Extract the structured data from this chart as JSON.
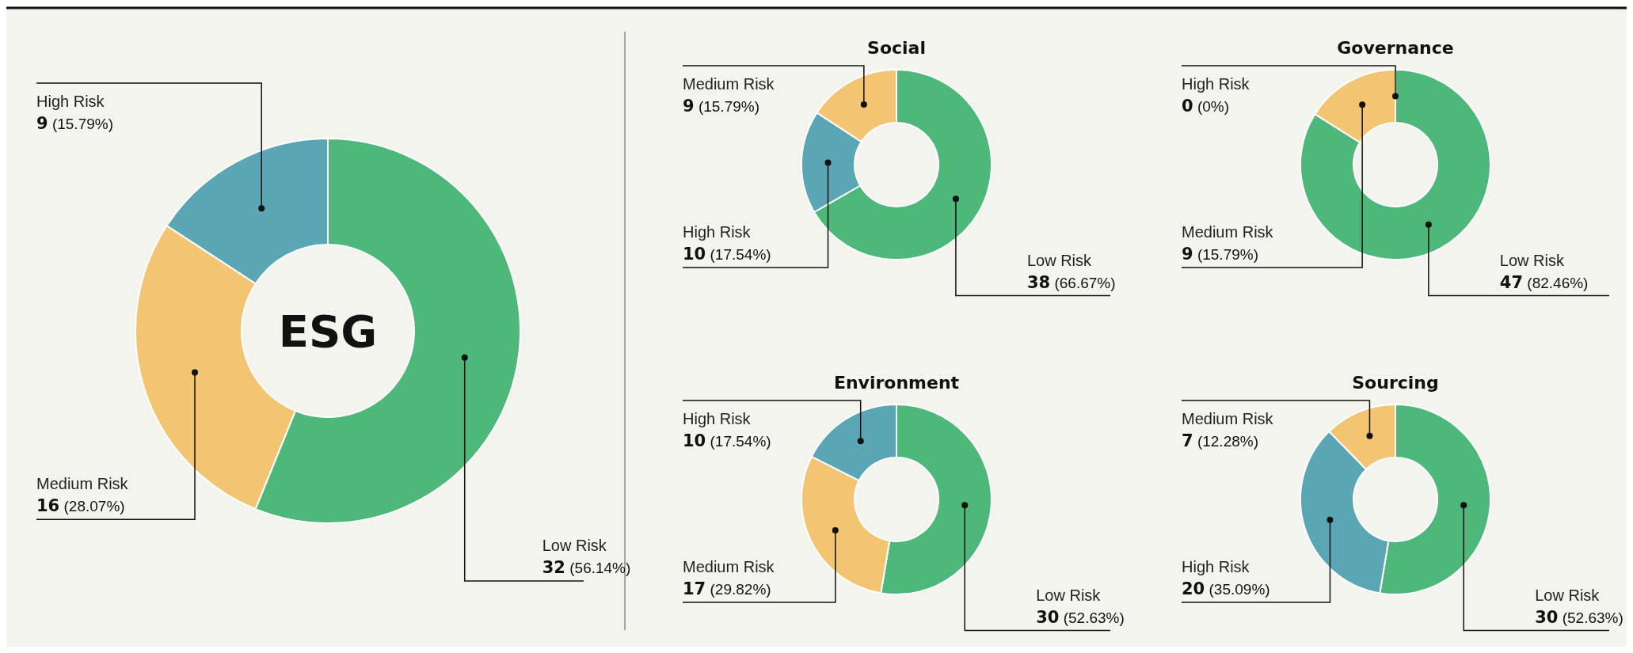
{
  "chart_data": [
    {
      "type": "donut",
      "title": "ESG",
      "categories": [
        "Low Risk",
        "Medium Risk",
        "High Risk"
      ],
      "values": [
        32,
        16,
        9
      ],
      "colors": [
        "#4db879",
        "#f3c472",
        "#5aa6b4"
      ],
      "value_labels": [
        "32 (56.14%)",
        "16 (28.07%)",
        "9 (15.79%)"
      ]
    },
    {
      "type": "donut",
      "title": "Social",
      "categories": [
        "Low Risk",
        "High Risk",
        "Medium Risk"
      ],
      "values": [
        38,
        10,
        9
      ],
      "colors": [
        "#4db879",
        "#5aa6b4",
        "#f3c472"
      ],
      "value_labels": [
        "38 (66.67%)",
        "10 (17.54%)",
        "9 (15.79%)"
      ]
    },
    {
      "type": "donut",
      "title": "Governance",
      "categories": [
        "Low Risk",
        "Medium Risk",
        "High Risk"
      ],
      "values": [
        47,
        9,
        0
      ],
      "colors": [
        "#4db879",
        "#f3c472",
        "#5aa6b4"
      ],
      "value_labels": [
        "47 (82.46%)",
        "9 (15.79%)",
        "0 (0%)"
      ]
    },
    {
      "type": "donut",
      "title": "Environment",
      "categories": [
        "Low Risk",
        "Medium Risk",
        "High Risk"
      ],
      "values": [
        30,
        17,
        10
      ],
      "colors": [
        "#4db879",
        "#f3c472",
        "#5aa6b4"
      ],
      "value_labels": [
        "30 (52.63%)",
        "17 (29.82%)",
        "10 (17.54%)"
      ]
    },
    {
      "type": "donut",
      "title": "Sourcing",
      "categories": [
        "Low Risk",
        "High Risk",
        "Medium Risk"
      ],
      "values": [
        30,
        20,
        7
      ],
      "colors": [
        "#4db879",
        "#5aa6b4",
        "#f3c472"
      ],
      "value_labels": [
        "30 (52.63%)",
        "20 (35.09%)",
        "7 (12.28%)"
      ]
    }
  ]
}
